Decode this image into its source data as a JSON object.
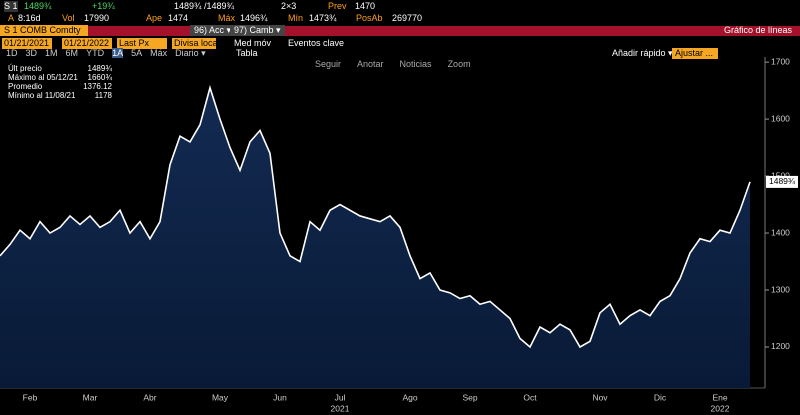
{
  "header": {
    "row1": [
      "S 1",
      "1489¾",
      "+19¾",
      "1489¾ /1489¾",
      "2×3",
      "Prev",
      "1470"
    ],
    "row2": [
      "A",
      "8:16d",
      "Vol",
      "17990",
      "Ape",
      "1474",
      "Máx",
      "1496¾",
      "Mín",
      "1473¾",
      "PosAb",
      "269770"
    ],
    "security": "S 1 COMB Comdty",
    "actions": "96) Acc ▾",
    "change": "97) Camb ▾",
    "view": "Gráfico de líneas"
  },
  "controls": {
    "start": "01/21/2021",
    "end": "01/21/2022",
    "field": "Last Px",
    "currency": "Divisa local",
    "ma": "Med móv",
    "events": "Eventos clave",
    "ranges": [
      "1D",
      "3D",
      "1M",
      "6M",
      "YTD",
      "1A",
      "5A",
      "Máx",
      "Diario ▾"
    ],
    "table": "Tabla",
    "quick": "Añadir rápido ▾",
    "adjust": "Ajustar ..."
  },
  "toolbar": [
    "Seguir",
    "Anotar",
    "Noticias",
    "Zoom"
  ],
  "legend": {
    "rows": [
      {
        "label": "Últ precio",
        "value": "1489¾"
      },
      {
        "label": "Máximo al 05/12/21",
        "value": "1660¾"
      },
      {
        "label": "Promedio",
        "value": "1376.12"
      },
      {
        "label": "Mínimo al 11/08/21",
        "value": "1178"
      }
    ]
  },
  "chart_data": {
    "type": "area",
    "color": "#ffffff",
    "fill": "#0b1d3a",
    "categories": [
      null,
      null,
      null,
      "Feb",
      null,
      null,
      null,
      null,
      null,
      "Mar",
      null,
      null,
      null,
      null,
      null,
      "Abr",
      null,
      null,
      null,
      null,
      null,
      null,
      "May",
      null,
      null,
      null,
      null,
      null,
      "Jun",
      null,
      null,
      null,
      null,
      null,
      "Jul",
      null,
      null,
      null,
      null,
      null,
      null,
      "Ago",
      null,
      null,
      null,
      null,
      null,
      "Sep",
      null,
      null,
      null,
      null,
      null,
      "Oct",
      null,
      null,
      null,
      null,
      null,
      null,
      "Nov",
      null,
      null,
      null,
      null,
      null,
      "Dic",
      null,
      null,
      null,
      null,
      null,
      "Ene",
      null,
      null,
      null
    ],
    "values": [
      1360,
      1380,
      1405,
      1390,
      1420,
      1400,
      1410,
      1430,
      1415,
      1430,
      1410,
      1420,
      1440,
      1400,
      1420,
      1390,
      1420,
      1520,
      1570,
      1560,
      1590,
      1655,
      1600,
      1550,
      1510,
      1560,
      1580,
      1540,
      1400,
      1360,
      1350,
      1420,
      1405,
      1440,
      1450,
      1440,
      1430,
      1425,
      1420,
      1430,
      1410,
      1360,
      1320,
      1330,
      1300,
      1295,
      1285,
      1290,
      1275,
      1280,
      1265,
      1250,
      1215,
      1200,
      1235,
      1225,
      1240,
      1230,
      1200,
      1210,
      1260,
      1275,
      1240,
      1255,
      1265,
      1255,
      1280,
      1290,
      1320,
      1365,
      1390,
      1385,
      1405,
      1400,
      1440,
      1489.75
    ],
    "last_label": "1489¾",
    "year_labels": [
      {
        "index": 34,
        "label": "2021"
      },
      {
        "index": 72,
        "label": "2022"
      }
    ],
    "ylim": [
      1128,
      1709
    ],
    "yticks": [
      1200,
      1300,
      1400,
      1500,
      1600,
      1700
    ]
  }
}
